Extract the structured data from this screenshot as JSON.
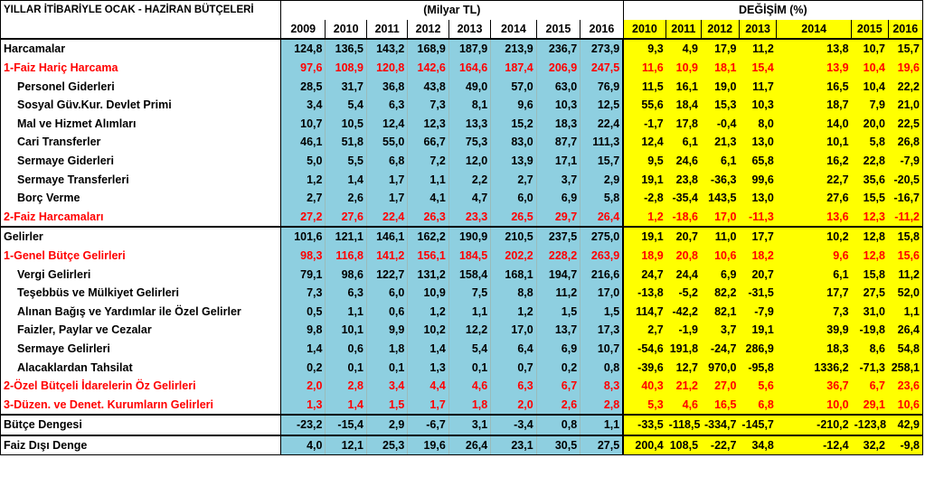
{
  "title": "YILLAR İTİBARİYLE OCAK - HAZİRAN BÜTÇELERİ",
  "unit_label": "(Milyar TL)",
  "change_label": "DEĞİŞİM  (%)",
  "years_values": [
    "2009",
    "2010",
    "2011",
    "2012",
    "2013",
    "2014",
    "2015",
    "2016"
  ],
  "years_change": [
    "2010",
    "2011",
    "2012",
    "2013",
    "2014",
    "2015",
    "2016"
  ],
  "rows": [
    {
      "label": "Harcamalar",
      "indent": false,
      "red": false,
      "values": [
        "124,8",
        "136,5",
        "143,2",
        "168,9",
        "187,9",
        "213,9",
        "236,7",
        "273,9"
      ],
      "changes": [
        "9,3",
        "4,9",
        "17,9",
        "11,2",
        "13,8",
        "10,7",
        "15,7"
      ]
    },
    {
      "label": "1-Faiz Hariç Harcama",
      "indent": false,
      "red": true,
      "values": [
        "97,6",
        "108,9",
        "120,8",
        "142,6",
        "164,6",
        "187,4",
        "206,9",
        "247,5"
      ],
      "changes": [
        "11,6",
        "10,9",
        "18,1",
        "15,4",
        "13,9",
        "10,4",
        "19,6"
      ]
    },
    {
      "label": "Personel Giderleri",
      "indent": true,
      "red": false,
      "values": [
        "28,5",
        "31,7",
        "36,8",
        "43,8",
        "49,0",
        "57,0",
        "63,0",
        "76,9"
      ],
      "changes": [
        "11,5",
        "16,1",
        "19,0",
        "11,7",
        "16,5",
        "10,4",
        "22,2"
      ]
    },
    {
      "label": "Sosyal Güv.Kur. Devlet Primi",
      "indent": true,
      "red": false,
      "values": [
        "3,4",
        "5,4",
        "6,3",
        "7,3",
        "8,1",
        "9,6",
        "10,3",
        "12,5"
      ],
      "changes": [
        "55,6",
        "18,4",
        "15,3",
        "10,3",
        "18,7",
        "7,9",
        "21,0"
      ]
    },
    {
      "label": "Mal ve Hizmet Alımları",
      "indent": true,
      "red": false,
      "values": [
        "10,7",
        "10,5",
        "12,4",
        "12,3",
        "13,3",
        "15,2",
        "18,3",
        "22,4"
      ],
      "changes": [
        "-1,7",
        "17,8",
        "-0,4",
        "8,0",
        "14,0",
        "20,0",
        "22,5"
      ]
    },
    {
      "label": "Cari Transferler",
      "indent": true,
      "red": false,
      "values": [
        "46,1",
        "51,8",
        "55,0",
        "66,7",
        "75,3",
        "83,0",
        "87,7",
        "111,3"
      ],
      "changes": [
        "12,4",
        "6,1",
        "21,3",
        "13,0",
        "10,1",
        "5,8",
        "26,8"
      ]
    },
    {
      "label": "Sermaye Giderleri",
      "indent": true,
      "red": false,
      "values": [
        "5,0",
        "5,5",
        "6,8",
        "7,2",
        "12,0",
        "13,9",
        "17,1",
        "15,7"
      ],
      "changes": [
        "9,5",
        "24,6",
        "6,1",
        "65,8",
        "16,2",
        "22,8",
        "-7,9"
      ]
    },
    {
      "label": "Sermaye Transferleri",
      "indent": true,
      "red": false,
      "values": [
        "1,2",
        "1,4",
        "1,7",
        "1,1",
        "2,2",
        "2,7",
        "3,7",
        "2,9"
      ],
      "changes": [
        "19,1",
        "23,8",
        "-36,3",
        "99,6",
        "22,7",
        "35,6",
        "-20,5"
      ]
    },
    {
      "label": "Borç Verme",
      "indent": true,
      "red": false,
      "values": [
        "2,7",
        "2,6",
        "1,7",
        "4,1",
        "4,7",
        "6,0",
        "6,9",
        "5,8"
      ],
      "changes": [
        "-2,8",
        "-35,4",
        "143,5",
        "13,0",
        "27,6",
        "15,5",
        "-16,7"
      ]
    },
    {
      "label": "2-Faiz Harcamaları",
      "indent": false,
      "red": true,
      "values": [
        "27,2",
        "27,6",
        "22,4",
        "26,3",
        "23,3",
        "26,5",
        "29,7",
        "26,4"
      ],
      "changes": [
        "1,2",
        "-18,6",
        "17,0",
        "-11,3",
        "13,6",
        "12,3",
        "-11,2"
      ]
    },
    {
      "label": "Gelirler",
      "indent": false,
      "red": false,
      "section_top": true,
      "values": [
        "101,6",
        "121,1",
        "146,1",
        "162,2",
        "190,9",
        "210,5",
        "237,5",
        "275,0"
      ],
      "changes": [
        "19,1",
        "20,7",
        "11,0",
        "17,7",
        "10,2",
        "12,8",
        "15,8"
      ]
    },
    {
      "label": "1-Genel Bütçe Gelirleri",
      "indent": false,
      "red": true,
      "values": [
        "98,3",
        "116,8",
        "141,2",
        "156,1",
        "184,5",
        "202,2",
        "228,2",
        "263,9"
      ],
      "changes": [
        "18,9",
        "20,8",
        "10,6",
        "18,2",
        "9,6",
        "12,8",
        "15,6"
      ]
    },
    {
      "label": "Vergi Gelirleri",
      "indent": true,
      "red": false,
      "values": [
        "79,1",
        "98,6",
        "122,7",
        "131,2",
        "158,4",
        "168,1",
        "194,7",
        "216,6"
      ],
      "changes": [
        "24,7",
        "24,4",
        "6,9",
        "20,7",
        "6,1",
        "15,8",
        "11,2"
      ]
    },
    {
      "label": "Teşebbüs ve Mülkiyet Gelirleri",
      "indent": true,
      "red": false,
      "values": [
        "7,3",
        "6,3",
        "6,0",
        "10,9",
        "7,5",
        "8,8",
        "11,2",
        "17,0"
      ],
      "changes": [
        "-13,8",
        "-5,2",
        "82,2",
        "-31,5",
        "17,7",
        "27,5",
        "52,0"
      ]
    },
    {
      "label": "Alınan Bağış ve Yardımlar ile Özel Gelirler",
      "indent": true,
      "red": false,
      "values": [
        "0,5",
        "1,1",
        "0,6",
        "1,2",
        "1,1",
        "1,2",
        "1,5",
        "1,5"
      ],
      "changes": [
        "114,7",
        "-42,2",
        "82,1",
        "-7,9",
        "7,3",
        "31,0",
        "1,1"
      ]
    },
    {
      "label": "Faizler, Paylar ve Cezalar",
      "indent": true,
      "red": false,
      "values": [
        "9,8",
        "10,1",
        "9,9",
        "10,2",
        "12,2",
        "17,0",
        "13,7",
        "17,3"
      ],
      "changes": [
        "2,7",
        "-1,9",
        "3,7",
        "19,1",
        "39,9",
        "-19,8",
        "26,4"
      ]
    },
    {
      "label": "Sermaye Gelirleri",
      "indent": true,
      "red": false,
      "values": [
        "1,4",
        "0,6",
        "1,8",
        "1,4",
        "5,4",
        "6,4",
        "6,9",
        "10,7"
      ],
      "changes": [
        "-54,6",
        "191,8",
        "-24,7",
        "286,9",
        "18,3",
        "8,6",
        "54,8"
      ]
    },
    {
      "label": "Alacaklardan Tahsilat",
      "indent": true,
      "red": false,
      "values": [
        "0,2",
        "0,1",
        "0,1",
        "1,3",
        "0,1",
        "0,7",
        "0,2",
        "0,8"
      ],
      "changes": [
        "-39,6",
        "12,7",
        "970,0",
        "-95,8",
        "1336,2",
        "-71,3",
        "258,1"
      ]
    },
    {
      "label": "2-Özel Bütçeli İdarelerin Öz  Gelirleri",
      "indent": false,
      "red": true,
      "values": [
        "2,0",
        "2,8",
        "3,4",
        "4,4",
        "4,6",
        "6,3",
        "6,7",
        "8,3"
      ],
      "changes": [
        "40,3",
        "21,2",
        "27,0",
        "5,6",
        "36,7",
        "6,7",
        "23,6"
      ]
    },
    {
      "label": "3-Düzen. ve Denet. Kurumların Gelirleri",
      "indent": false,
      "red": true,
      "values": [
        "1,3",
        "1,4",
        "1,5",
        "1,7",
        "1,8",
        "2,0",
        "2,6",
        "2,8"
      ],
      "changes": [
        "5,3",
        "4,6",
        "16,5",
        "6,8",
        "10,0",
        "29,1",
        "10,6"
      ]
    },
    {
      "label": "Bütçe Dengesi",
      "indent": false,
      "red": false,
      "section_top": true,
      "values": [
        "-23,2",
        "-15,4",
        "2,9",
        "-6,7",
        "3,1",
        "-3,4",
        "0,8",
        "1,1"
      ],
      "changes": [
        "-33,5",
        "-118,5",
        "-334,7",
        "-145,7",
        "-210,2",
        "-123,8",
        "42,9"
      ]
    },
    {
      "label": "Faiz Dışı Denge",
      "indent": false,
      "red": false,
      "section_top": true,
      "values": [
        "4,0",
        "12,1",
        "25,3",
        "19,6",
        "26,4",
        "23,1",
        "30,5",
        "27,5"
      ],
      "changes": [
        "200,4",
        "108,5",
        "-22,7",
        "34,8",
        "-12,4",
        "32,2",
        "-9,8"
      ]
    }
  ]
}
